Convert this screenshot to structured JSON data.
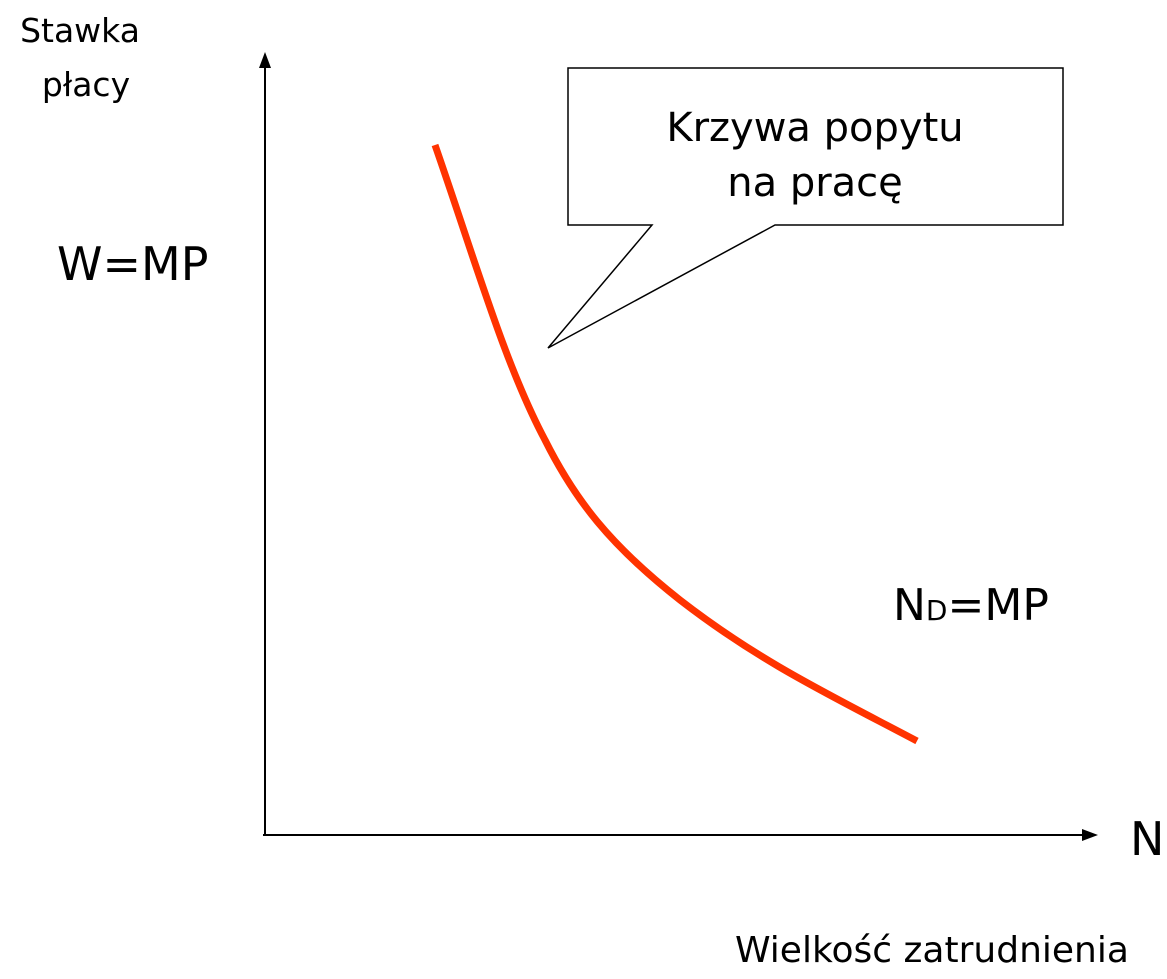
{
  "y_axis_label": {
    "lines": [
      "Stawka",
      "płacy"
    ]
  },
  "y_label": "W=MP",
  "callout": {
    "lines": [
      "Krzywa popytu",
      "na pracę"
    ]
  },
  "curve_label": {
    "main": "N",
    "sub": "D",
    "rest": "=MP"
  },
  "x_axis_symbol": "N",
  "x_axis_label": "Wielkość zatrudnienia"
}
